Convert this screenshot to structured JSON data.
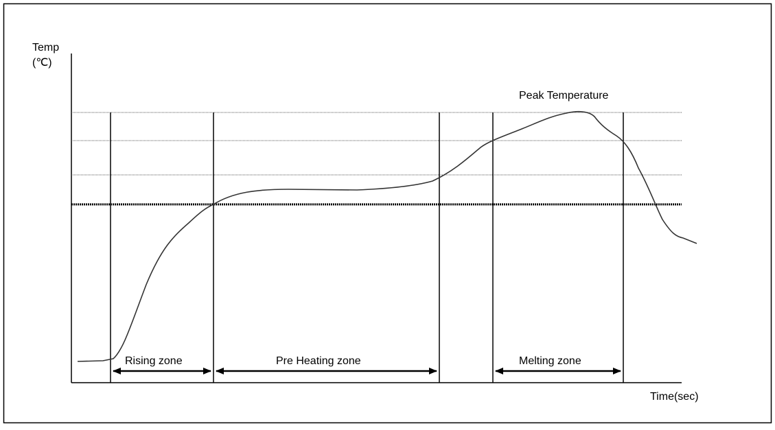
{
  "diagram": {
    "y_axis_label_line1": "Temp",
    "y_axis_label_line2": "(℃)",
    "x_axis_label": "Time(sec)",
    "peak_label": "Peak Temperature",
    "zones": [
      {
        "id": "rising",
        "label": "Rising zone"
      },
      {
        "id": "preheating",
        "label": "Pre Heating zone"
      },
      {
        "id": "melting",
        "label": "Melting zone"
      }
    ]
  }
}
